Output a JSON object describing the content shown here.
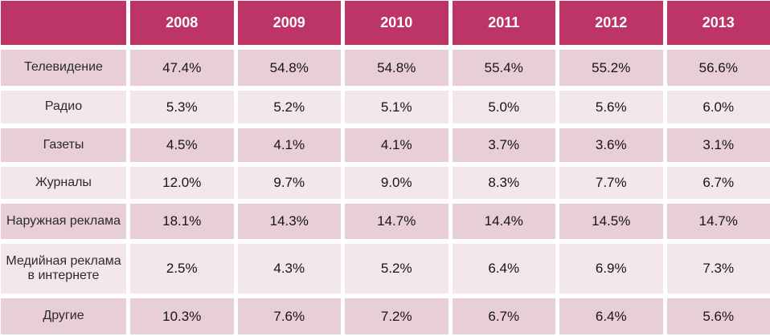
{
  "chart_data": {
    "type": "table",
    "title": "",
    "columns": [
      "2008",
      "2009",
      "2010",
      "2011",
      "2012",
      "2013"
    ],
    "rows": [
      {
        "label": "Телевидение",
        "values": [
          "47.4%",
          "54.8%",
          "54.8%",
          "55.4%",
          "55.2%",
          "56.6%"
        ]
      },
      {
        "label": "Радио",
        "values": [
          "5.3%",
          "5.2%",
          "5.1%",
          "5.0%",
          "5.6%",
          "6.0%"
        ]
      },
      {
        "label": "Газеты",
        "values": [
          "4.5%",
          "4.1%",
          "4.1%",
          "3.7%",
          "3.6%",
          "3.1%"
        ]
      },
      {
        "label": "Журналы",
        "values": [
          "12.0%",
          "9.7%",
          "9.0%",
          "8.3%",
          "7.7%",
          "6.7%"
        ]
      },
      {
        "label": "Наружная реклама",
        "values": [
          "18.1%",
          "14.3%",
          "14.7%",
          "14.4%",
          "14.5%",
          "14.7%"
        ]
      },
      {
        "label": "Медийная реклама в интернете",
        "values": [
          "2.5%",
          "4.3%",
          "5.2%",
          "6.4%",
          "6.9%",
          "7.3%"
        ]
      },
      {
        "label": "Другие",
        "values": [
          "10.3%",
          "7.6%",
          "7.2%",
          "6.7%",
          "6.4%",
          "5.6%"
        ]
      }
    ],
    "layout": {
      "header_position": "top",
      "row_striping": [
        "dark",
        "light",
        "dark",
        "light",
        "dark",
        "light",
        "dark"
      ],
      "grid_gutter_color": "#ffffff"
    },
    "colors": {
      "header_bg": "#bd3566",
      "header_text": "#ffffff",
      "row_dark_bg": "#e7ced7",
      "row_light_bg": "#f3e7eb",
      "cell_text": "#161616"
    }
  }
}
